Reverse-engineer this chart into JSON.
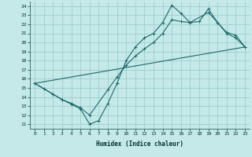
{
  "xlabel": "Humidex (Indice chaleur)",
  "bg_color": "#c5e8e8",
  "grid_color": "#9ecece",
  "line_color": "#1a6b6b",
  "xlim": [
    -0.5,
    23.5
  ],
  "ylim": [
    10.5,
    24.5
  ],
  "xticks": [
    0,
    1,
    2,
    3,
    4,
    5,
    6,
    7,
    8,
    9,
    10,
    11,
    12,
    13,
    14,
    15,
    16,
    17,
    18,
    19,
    20,
    21,
    22,
    23
  ],
  "yticks": [
    11,
    12,
    13,
    14,
    15,
    16,
    17,
    18,
    19,
    20,
    21,
    22,
    23,
    24
  ],
  "line1_x": [
    0,
    1,
    2,
    3,
    4,
    5,
    6,
    7,
    8,
    9,
    10,
    11,
    12,
    13,
    14,
    15,
    16,
    17,
    18,
    19,
    20,
    21,
    22,
    23
  ],
  "line1_y": [
    15.5,
    14.9,
    14.3,
    13.7,
    13.2,
    12.7,
    11.0,
    11.4,
    13.3,
    15.5,
    18.0,
    19.5,
    20.5,
    21.0,
    22.2,
    24.1,
    23.2,
    22.2,
    22.3,
    23.7,
    22.2,
    21.0,
    20.5,
    19.5
  ],
  "line2_x": [
    0,
    2,
    3,
    4,
    5,
    6,
    8,
    9,
    10,
    11,
    12,
    13,
    14,
    15,
    16,
    17,
    19,
    20,
    21,
    22,
    23
  ],
  "line2_y": [
    15.5,
    14.3,
    13.7,
    13.3,
    12.8,
    12.0,
    14.8,
    16.2,
    17.5,
    18.5,
    19.3,
    20.0,
    21.0,
    22.5,
    22.3,
    22.2,
    23.3,
    22.2,
    21.1,
    20.8,
    19.5
  ],
  "line3_x": [
    0,
    23
  ],
  "line3_y": [
    15.5,
    19.5
  ]
}
